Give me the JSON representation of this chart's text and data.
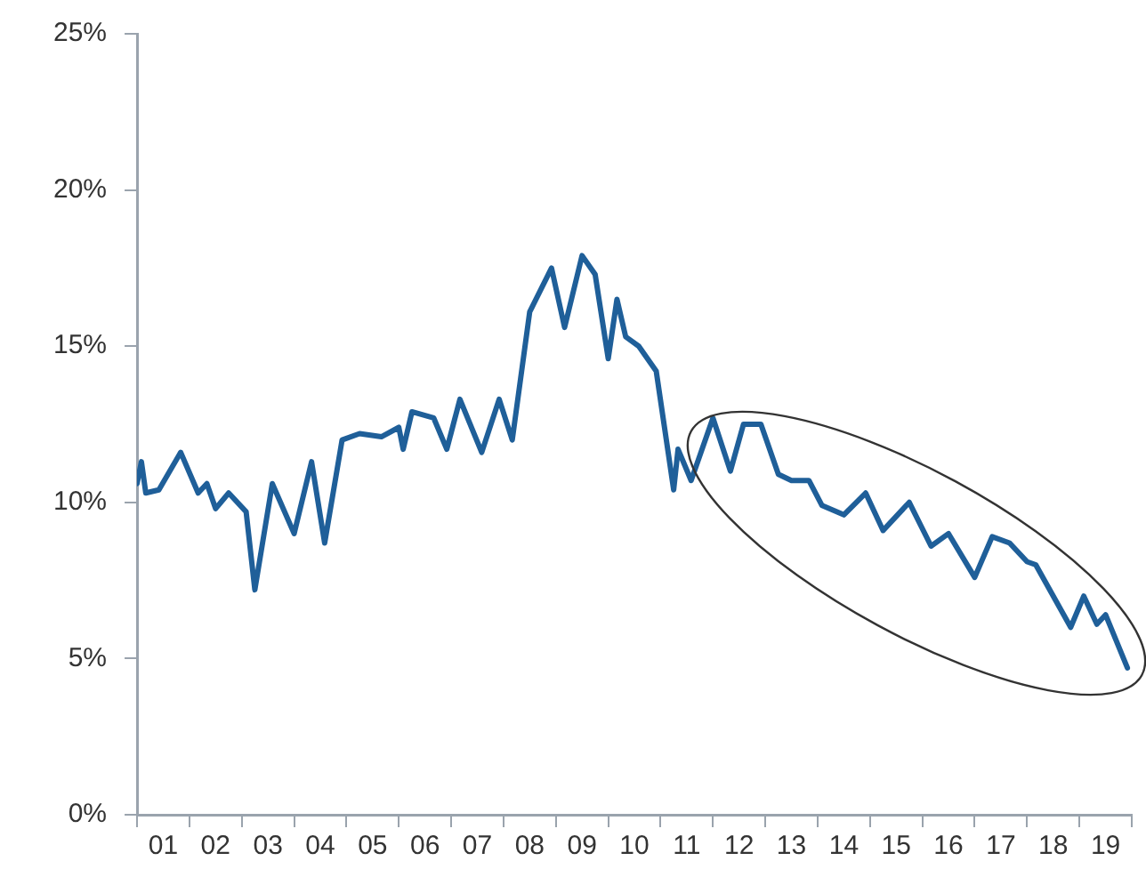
{
  "chart_data": {
    "type": "line",
    "x": [
      "2001-01",
      "2001-02",
      "2001-03",
      "2001-06",
      "2001-11",
      "2002-03",
      "2002-05",
      "2002-07",
      "2002-10",
      "2003-02",
      "2003-04",
      "2003-08",
      "2004-01",
      "2004-05",
      "2004-08",
      "2004-12",
      "2005-04",
      "2005-09",
      "2006-01",
      "2006-02",
      "2006-04",
      "2006-09",
      "2006-12",
      "2007-03",
      "2007-08",
      "2007-12",
      "2008-03",
      "2008-07",
      "2008-12",
      "2009-03",
      "2009-07",
      "2009-10",
      "2010-01",
      "2010-03",
      "2010-05",
      "2010-08",
      "2010-12",
      "2011-04",
      "2011-05",
      "2011-08",
      "2012-01",
      "2012-05",
      "2012-08",
      "2012-12",
      "2013-04",
      "2013-07",
      "2013-11",
      "2014-02",
      "2014-07",
      "2014-12",
      "2015-04",
      "2015-10",
      "2016-03",
      "2016-07",
      "2017-01",
      "2017-05",
      "2017-09",
      "2018-01",
      "2018-03",
      "2018-11",
      "2019-02",
      "2019-05",
      "2019-07",
      "2019-12"
    ],
    "series": [
      {
        "color": "#1f5f99",
        "values": [
          10.6,
          11.3,
          10.3,
          10.4,
          11.6,
          10.3,
          10.6,
          9.8,
          10.3,
          9.7,
          7.2,
          10.6,
          9.0,
          11.3,
          8.7,
          12.0,
          12.2,
          12.1,
          12.4,
          11.7,
          12.9,
          12.7,
          11.7,
          13.3,
          11.6,
          13.3,
          12.0,
          16.1,
          17.5,
          15.6,
          17.9,
          17.3,
          14.6,
          16.5,
          15.3,
          15.0,
          14.2,
          10.4,
          11.7,
          10.7,
          12.7,
          11.0,
          12.5,
          12.5,
          10.9,
          10.7,
          10.7,
          9.9,
          9.6,
          10.3,
          9.1,
          10.0,
          8.6,
          9.0,
          7.6,
          8.9,
          8.7,
          8.1,
          8.0,
          6.0,
          7.0,
          6.1,
          6.4,
          4.7
        ]
      }
    ],
    "xlim": [
      "2001-01",
      "2020-01"
    ],
    "xticks": [
      {
        "value": "2001-01",
        "label": null
      },
      {
        "value": "2001-07",
        "label": "01"
      },
      {
        "value": "2002-01",
        "label": null
      },
      {
        "value": "2002-07",
        "label": "02"
      },
      {
        "value": "2003-01",
        "label": null
      },
      {
        "value": "2003-07",
        "label": "03"
      },
      {
        "value": "2004-01",
        "label": null
      },
      {
        "value": "2004-07",
        "label": "04"
      },
      {
        "value": "2005-01",
        "label": null
      },
      {
        "value": "2005-07",
        "label": "05"
      },
      {
        "value": "2006-01",
        "label": null
      },
      {
        "value": "2006-07",
        "label": "06"
      },
      {
        "value": "2007-01",
        "label": null
      },
      {
        "value": "2007-07",
        "label": "07"
      },
      {
        "value": "2008-01",
        "label": null
      },
      {
        "value": "2008-07",
        "label": "08"
      },
      {
        "value": "2009-01",
        "label": null
      },
      {
        "value": "2009-07",
        "label": "09"
      },
      {
        "value": "2010-01",
        "label": null
      },
      {
        "value": "2010-07",
        "label": "10"
      },
      {
        "value": "2011-01",
        "label": null
      },
      {
        "value": "2011-07",
        "label": "11"
      },
      {
        "value": "2012-01",
        "label": null
      },
      {
        "value": "2012-07",
        "label": "12"
      },
      {
        "value": "2013-01",
        "label": null
      },
      {
        "value": "2013-07",
        "label": "13"
      },
      {
        "value": "2014-01",
        "label": null
      },
      {
        "value": "2014-07",
        "label": "14"
      },
      {
        "value": "2015-01",
        "label": null
      },
      {
        "value": "2015-07",
        "label": "15"
      },
      {
        "value": "2016-01",
        "label": null
      },
      {
        "value": "2016-07",
        "label": "16"
      },
      {
        "value": "2017-01",
        "label": null
      },
      {
        "value": "2017-07",
        "label": "17"
      },
      {
        "value": "2018-01",
        "label": null
      },
      {
        "value": "2018-07",
        "label": "18"
      },
      {
        "value": "2019-01",
        "label": null
      },
      {
        "value": "2019-07",
        "label": "19"
      },
      {
        "value": "2020-01",
        "label": null
      }
    ],
    "ylim": [
      0,
      25
    ],
    "yticks": [
      {
        "value": 0,
        "label": "0%"
      },
      {
        "value": 5,
        "label": "5%"
      },
      {
        "value": 10,
        "label": "10%"
      },
      {
        "value": 15,
        "label": "15%"
      },
      {
        "value": 20,
        "label": "20%"
      },
      {
        "value": 25,
        "label": "25%"
      }
    ],
    "grid": false,
    "legend": false,
    "marker": "none",
    "line_style": "solid"
  }
}
